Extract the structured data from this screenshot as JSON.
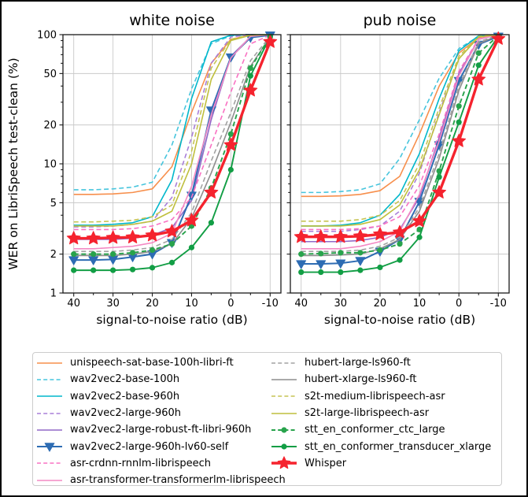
{
  "figure": {
    "background": "#ffffff",
    "border_color": "#000000",
    "text_color": "#000000",
    "grid_color": "#c9c9c9",
    "spine_color": "#1a1a1a"
  },
  "chart_data": {
    "type": "line",
    "x_label": "signal-to-noise ratio (dB)",
    "y_label": "WER on LibriSpeech test-clean (%)",
    "x": [
      40,
      35,
      30,
      25,
      20,
      15,
      10,
      5,
      0,
      -5,
      -10
    ],
    "x_major_ticks": [
      40,
      30,
      20,
      10,
      0,
      -10
    ],
    "x_minor_ticks": [
      35,
      25,
      15,
      5,
      -5
    ],
    "xlim": [
      42.75,
      -12.75
    ],
    "x_axis_inverted": true,
    "y_scale": "log",
    "ylim": [
      1,
      100
    ],
    "y_major_ticks": [
      1,
      2,
      5,
      10,
      20,
      50,
      100
    ],
    "y_minor_ticks": [
      3,
      4,
      6,
      7,
      8,
      9,
      30,
      40,
      60,
      70,
      80,
      90
    ],
    "grid": true,
    "legend_position": "below",
    "panels": [
      {
        "title": "white noise",
        "values_key": "white_noise"
      },
      {
        "title": "pub noise",
        "values_key": "pub_noise"
      }
    ],
    "series": [
      {
        "name": "unispeech-sat-base-100h-libri-ft",
        "color": "#f78f4c",
        "line": "solid",
        "marker": "none",
        "white_noise": [
          5.8,
          5.8,
          5.85,
          6.0,
          6.4,
          9.5,
          25,
          60,
          92,
          99,
          100
        ],
        "pub_noise": [
          5.6,
          5.6,
          5.65,
          5.8,
          6.2,
          8.0,
          17,
          40,
          72,
          95,
          100
        ]
      },
      {
        "name": "wav2vec2-base-100h",
        "color": "#46c5dd",
        "line": "dashed",
        "marker": "none",
        "white_noise": [
          6.3,
          6.3,
          6.4,
          6.6,
          7.2,
          14,
          38,
          85,
          98,
          100,
          100
        ],
        "pub_noise": [
          6.0,
          6.0,
          6.1,
          6.3,
          7.0,
          11,
          22,
          46,
          78,
          97,
          100
        ]
      },
      {
        "name": "wav2vec2-base-960h",
        "color": "#00b7cb",
        "line": "solid",
        "marker": "none",
        "white_noise": [
          3.35,
          3.35,
          3.4,
          3.5,
          3.9,
          7.5,
          32,
          88,
          99,
          100,
          100
        ],
        "pub_noise": [
          3.3,
          3.3,
          3.35,
          3.5,
          4.0,
          5.8,
          12,
          32,
          75,
          98,
          100
        ]
      },
      {
        "name": "wav2vec2-large-960h",
        "color": "#a97fd8",
        "line": "dashed",
        "marker": "none",
        "white_noise": [
          3.25,
          3.25,
          3.3,
          3.4,
          3.6,
          5.5,
          16,
          60,
          96,
          100,
          100
        ],
        "pub_noise": [
          3.0,
          3.0,
          3.0,
          3.1,
          3.3,
          4.3,
          8.5,
          25,
          65,
          96,
          100
        ]
      },
      {
        "name": "wav2vec2-large-robust-ft-libri-960h",
        "color": "#9169c7",
        "line": "solid",
        "marker": "none",
        "white_noise": [
          2.6,
          2.6,
          2.6,
          2.65,
          2.8,
          3.2,
          5.2,
          22,
          68,
          96,
          100
        ],
        "pub_noise": [
          2.5,
          2.5,
          2.5,
          2.55,
          2.7,
          3.1,
          5.5,
          16,
          50,
          92,
          100
        ]
      },
      {
        "name": "wav2vec2-large-960h-lv60-self",
        "color": "#2d6cb3",
        "line": "solid",
        "marker": "triangle-down",
        "white_noise": [
          1.8,
          1.8,
          1.82,
          1.9,
          2.0,
          2.45,
          5.7,
          26,
          67,
          95,
          99
        ],
        "pub_noise": [
          1.68,
          1.68,
          1.7,
          1.78,
          2.1,
          2.6,
          5.1,
          14,
          44,
          84,
          97
        ]
      },
      {
        "name": "asr-crdnn-rnnlm-librispeech",
        "color": "#f972c3",
        "line": "dashed",
        "marker": "none",
        "white_noise": [
          3.1,
          3.1,
          3.1,
          3.15,
          3.3,
          3.7,
          5.5,
          14,
          36,
          85,
          99
        ],
        "pub_noise": [
          3.1,
          3.1,
          3.1,
          3.15,
          3.3,
          3.9,
          6.8,
          17,
          52,
          93,
          100
        ]
      },
      {
        "name": "asr-transformer-transformerlm-librispeech",
        "color": "#f38ac4",
        "line": "solid",
        "marker": "none",
        "white_noise": [
          2.2,
          2.2,
          2.25,
          2.3,
          2.45,
          2.9,
          6.7,
          24,
          66,
          97,
          100
        ],
        "pub_noise": [
          2.2,
          2.2,
          2.2,
          2.3,
          2.5,
          3.0,
          5.8,
          15,
          48,
          92,
          100
        ]
      },
      {
        "name": "hubert-large-ls960-ft",
        "color": "#a2a2a2",
        "line": "dashed",
        "marker": "none",
        "white_noise": [
          2.1,
          2.1,
          2.1,
          2.15,
          2.25,
          2.6,
          4.2,
          10.5,
          25,
          63,
          97
        ],
        "pub_noise": [
          2.1,
          2.1,
          2.1,
          2.15,
          2.3,
          2.7,
          4.6,
          12,
          40,
          88,
          99
        ]
      },
      {
        "name": "hubert-xlarge-ls960-ft",
        "color": "#8e8e8e",
        "line": "solid",
        "marker": "none",
        "white_noise": [
          1.95,
          1.95,
          1.95,
          2.0,
          2.1,
          2.4,
          3.8,
          8.5,
          21,
          57,
          96
        ],
        "pub_noise": [
          1.95,
          1.95,
          1.97,
          2.0,
          2.2,
          2.6,
          4.3,
          11,
          37,
          85,
          99
        ]
      },
      {
        "name": "s2t-medium-librispeech-asr",
        "color": "#c6c453",
        "line": "dashed",
        "marker": "none",
        "white_noise": [
          3.55,
          3.55,
          3.6,
          3.65,
          3.9,
          4.8,
          12.5,
          55,
          92,
          100,
          100
        ],
        "pub_noise": [
          3.6,
          3.6,
          3.6,
          3.7,
          4.0,
          5.2,
          10,
          27,
          68,
          97,
          100
        ]
      },
      {
        "name": "s2t-large-librispeech-asr",
        "color": "#bfbf3d",
        "line": "solid",
        "marker": "none",
        "white_noise": [
          3.3,
          3.3,
          3.3,
          3.4,
          3.6,
          4.3,
          10,
          45,
          90,
          99,
          100
        ],
        "pub_noise": [
          3.3,
          3.3,
          3.3,
          3.4,
          3.7,
          4.8,
          9.0,
          24,
          65,
          96,
          100
        ]
      },
      {
        "name": "stt_en_conformer_ctc_large",
        "color": "#28a34c",
        "line": "dashed",
        "marker": "circle",
        "white_noise": [
          2.0,
          2.0,
          2.0,
          2.05,
          2.15,
          2.4,
          3.3,
          6.5,
          17,
          55,
          97
        ],
        "pub_noise": [
          2.0,
          2.02,
          2.05,
          2.05,
          2.15,
          2.4,
          3.1,
          8.8,
          28,
          72,
          98
        ]
      },
      {
        "name": "stt_en_conformer_transducer_xlarge",
        "color": "#129e45",
        "line": "solid",
        "marker": "circle",
        "white_noise": [
          1.5,
          1.5,
          1.5,
          1.52,
          1.57,
          1.72,
          2.25,
          3.5,
          9.0,
          48,
          96
        ],
        "pub_noise": [
          1.45,
          1.45,
          1.45,
          1.5,
          1.58,
          1.8,
          2.7,
          7.9,
          21,
          58,
          97
        ]
      },
      {
        "name": "Whisper",
        "color": "#f5232e",
        "line": "solid",
        "marker": "star",
        "white_noise": [
          2.65,
          2.65,
          2.68,
          2.7,
          2.8,
          3.0,
          3.65,
          6.0,
          14,
          37,
          88
        ],
        "pub_noise": [
          2.72,
          2.72,
          2.72,
          2.75,
          2.85,
          2.95,
          3.6,
          6.0,
          15,
          45,
          93
        ]
      }
    ]
  }
}
